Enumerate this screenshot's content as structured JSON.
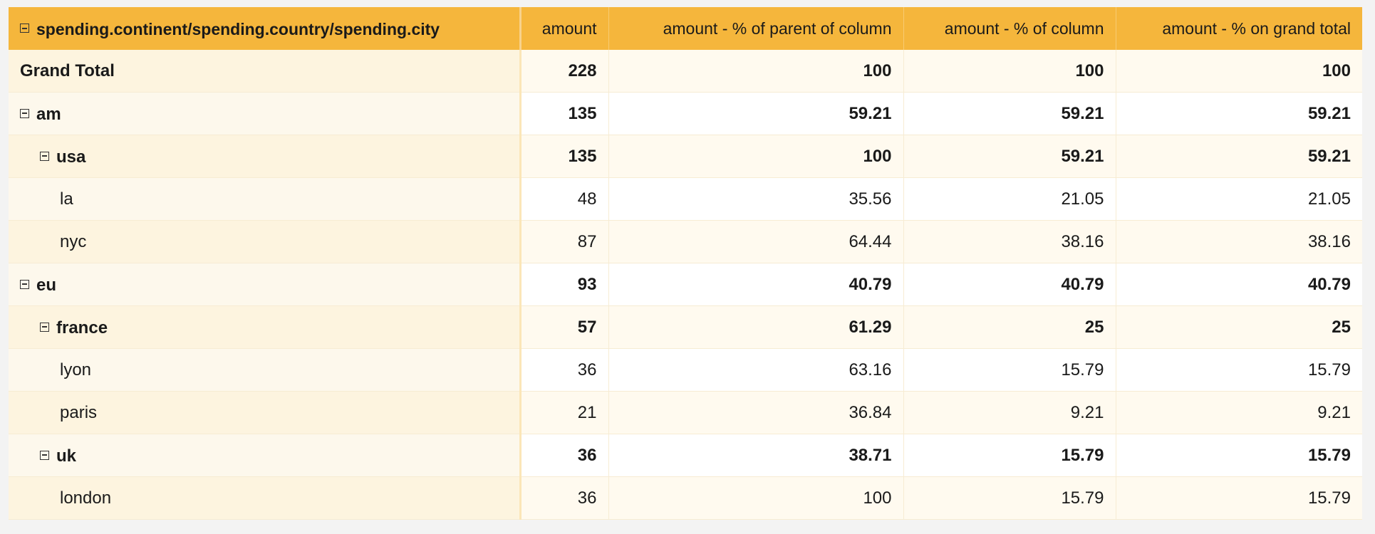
{
  "header": {
    "rows_label": "spending.continent/spending.country/spending.city",
    "columns": [
      "amount",
      "amount - % of parent of column",
      "amount - % of column",
      "amount - % on grand total"
    ]
  },
  "rows": [
    {
      "label": "Grand Total",
      "level": 1,
      "toggle": false,
      "bold": true,
      "values": [
        "228",
        "100",
        "100",
        "100"
      ]
    },
    {
      "label": "am",
      "level": 1,
      "toggle": true,
      "bold": true,
      "values": [
        "135",
        "59.21",
        "59.21",
        "59.21"
      ]
    },
    {
      "label": "usa",
      "level": 2,
      "toggle": true,
      "bold": true,
      "values": [
        "135",
        "100",
        "59.21",
        "59.21"
      ]
    },
    {
      "label": "la",
      "level": 3,
      "toggle": false,
      "bold": false,
      "values": [
        "48",
        "35.56",
        "21.05",
        "21.05"
      ]
    },
    {
      "label": "nyc",
      "level": 3,
      "toggle": false,
      "bold": false,
      "values": [
        "87",
        "64.44",
        "38.16",
        "38.16"
      ]
    },
    {
      "label": "eu",
      "level": 1,
      "toggle": true,
      "bold": true,
      "values": [
        "93",
        "40.79",
        "40.79",
        "40.79"
      ]
    },
    {
      "label": "france",
      "level": 2,
      "toggle": true,
      "bold": true,
      "values": [
        "57",
        "61.29",
        "25",
        "25"
      ]
    },
    {
      "label": "lyon",
      "level": 3,
      "toggle": false,
      "bold": false,
      "values": [
        "36",
        "63.16",
        "15.79",
        "15.79"
      ]
    },
    {
      "label": "paris",
      "level": 3,
      "toggle": false,
      "bold": false,
      "values": [
        "21",
        "36.84",
        "9.21",
        "9.21"
      ]
    },
    {
      "label": "uk",
      "level": 2,
      "toggle": true,
      "bold": true,
      "values": [
        "36",
        "38.71",
        "15.79",
        "15.79"
      ]
    },
    {
      "label": "london",
      "level": 3,
      "toggle": false,
      "bold": false,
      "values": [
        "36",
        "100",
        "15.79",
        "15.79"
      ]
    }
  ],
  "colors": {
    "header_bg": "#f5b63c",
    "row_alt_bg": "#fffaef",
    "label_bg": "#fdf8ec"
  }
}
